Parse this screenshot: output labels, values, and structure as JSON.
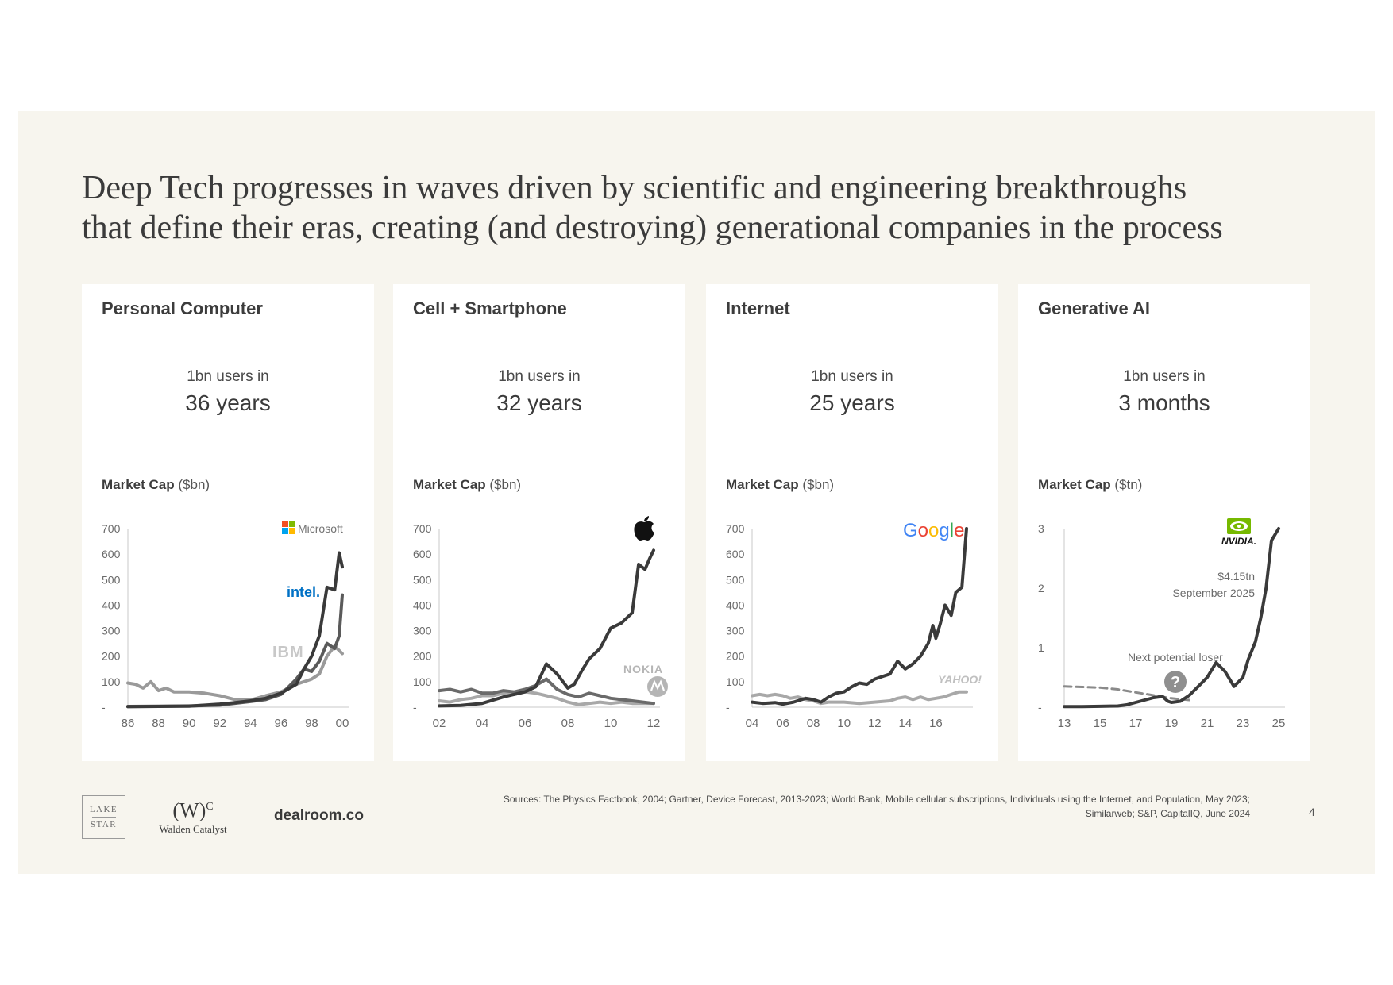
{
  "headline": {
    "line1": "Deep Tech progresses in waves driven by scientific and engineering breakthroughs",
    "line2": "that define their eras, creating (and destroying) generational companies in the process"
  },
  "cards": [
    {
      "title": "Personal Computer",
      "users_label": "1bn users in",
      "users_value": "36 years",
      "mcap_bold": "Market Cap",
      "mcap_unit": "($bn)"
    },
    {
      "title": "Cell + Smartphone",
      "users_label": "1bn users in",
      "users_value": "32 years",
      "mcap_bold": "Market Cap",
      "mcap_unit": "($bn)"
    },
    {
      "title": "Internet",
      "users_label": "1bn users in",
      "users_value": "25 years",
      "mcap_bold": "Market Cap",
      "mcap_unit": "($bn)"
    },
    {
      "title": "Generative AI",
      "users_label": "1bn users in",
      "users_value": "3 months",
      "mcap_bold": "Market Cap",
      "mcap_unit": "($tn)"
    }
  ],
  "chart_data": [
    {
      "type": "line",
      "title": "Personal Computer",
      "ylabel": "Market Cap ($bn)",
      "ylim": [
        0,
        700
      ],
      "yticks": [
        "-",
        "100",
        "200",
        "300",
        "400",
        "500",
        "600",
        "700"
      ],
      "xlim": [
        1986,
        2000
      ],
      "xticks": [
        "86",
        "88",
        "90",
        "92",
        "94",
        "96",
        "98",
        "00"
      ],
      "series": [
        {
          "name": "Microsoft",
          "color": "#3a3a3a",
          "x": [
            1986,
            1988,
            1990,
            1992,
            1993,
            1994,
            1995,
            1996,
            1997,
            1997.5,
            1998,
            1998.5,
            1999,
            1999.5,
            1999.8,
            2000
          ],
          "y": [
            2,
            3,
            4,
            12,
            18,
            25,
            35,
            55,
            90,
            150,
            200,
            280,
            470,
            460,
            605,
            550
          ]
        },
        {
          "name": "Intel",
          "color": "#5a5a5a",
          "x": [
            1986,
            1988,
            1990,
            1992,
            1993,
            1994,
            1995,
            1996,
            1997,
            1997.5,
            1998,
            1998.5,
            1999,
            1999.5,
            1999.8,
            2000
          ],
          "y": [
            3,
            4,
            5,
            8,
            15,
            22,
            30,
            50,
            110,
            150,
            140,
            180,
            250,
            230,
            280,
            440
          ]
        },
        {
          "name": "IBM",
          "color": "#9a9a9a",
          "x": [
            1986,
            1986.5,
            1987,
            1987.5,
            1988,
            1988.5,
            1989,
            1990,
            1991,
            1992,
            1993,
            1994,
            1995,
            1996,
            1997,
            1998,
            1998.5,
            1999,
            1999.5,
            2000
          ],
          "y": [
            95,
            90,
            75,
            100,
            65,
            75,
            60,
            60,
            55,
            45,
            30,
            28,
            45,
            60,
            90,
            110,
            130,
            200,
            240,
            210
          ]
        }
      ]
    },
    {
      "type": "line",
      "title": "Cell + Smartphone",
      "ylabel": "Market Cap ($bn)",
      "ylim": [
        0,
        700
      ],
      "yticks": [
        "-",
        "100",
        "200",
        "300",
        "400",
        "500",
        "600",
        "700"
      ],
      "xlim": [
        2002,
        2012
      ],
      "xticks": [
        "02",
        "04",
        "06",
        "08",
        "10",
        "12"
      ],
      "series": [
        {
          "name": "Apple",
          "color": "#3a3a3a",
          "x": [
            2002,
            2003,
            2004,
            2005,
            2006,
            2006.5,
            2007,
            2007.5,
            2008,
            2008.3,
            2008.7,
            2009,
            2009.5,
            2010,
            2010.5,
            2011,
            2011.3,
            2011.6,
            2011.8,
            2012
          ],
          "y": [
            5,
            7,
            15,
            40,
            60,
            80,
            170,
            130,
            75,
            90,
            150,
            190,
            230,
            310,
            330,
            370,
            560,
            540,
            580,
            615
          ]
        },
        {
          "name": "Nokia",
          "color": "#6a6a6a",
          "x": [
            2002,
            2002.5,
            2003,
            2003.5,
            2004,
            2004.5,
            2005,
            2005.5,
            2006,
            2006.5,
            2007,
            2007.5,
            2008,
            2008.5,
            2009,
            2009.5,
            2010,
            2010.5,
            2011,
            2011.5,
            2012
          ],
          "y": [
            65,
            70,
            60,
            70,
            55,
            55,
            65,
            60,
            70,
            85,
            110,
            70,
            50,
            40,
            55,
            45,
            35,
            30,
            25,
            20,
            15
          ]
        },
        {
          "name": "Motorola",
          "color": "#a8a8a8",
          "x": [
            2002,
            2002.5,
            2003,
            2003.5,
            2004,
            2004.5,
            2005,
            2005.5,
            2006,
            2006.5,
            2007,
            2007.5,
            2008,
            2008.5,
            2009,
            2009.5,
            2010,
            2010.5,
            2011,
            2011.5,
            2012
          ],
          "y": [
            25,
            20,
            30,
            35,
            45,
            45,
            55,
            50,
            60,
            55,
            45,
            35,
            20,
            10,
            15,
            20,
            15,
            20,
            15,
            15,
            15
          ]
        }
      ]
    },
    {
      "type": "line",
      "title": "Internet",
      "ylabel": "Market Cap ($bn)",
      "ylim": [
        0,
        700
      ],
      "yticks": [
        "-",
        "100",
        "200",
        "300",
        "400",
        "500",
        "600",
        "700"
      ],
      "xlim": [
        2004,
        2018
      ],
      "xticks": [
        "04",
        "06",
        "08",
        "10",
        "12",
        "14",
        "16"
      ],
      "series": [
        {
          "name": "Google",
          "color": "#3a3a3a",
          "x": [
            2004,
            2004.7,
            2005.5,
            2006,
            2006.7,
            2007.5,
            2008,
            2008.5,
            2009,
            2009.5,
            2010,
            2010.5,
            2011,
            2011.5,
            2012,
            2012.5,
            2013,
            2013.5,
            2014,
            2014.5,
            2015,
            2015.5,
            2015.8,
            2016,
            2016.3,
            2016.6,
            2017,
            2017.3,
            2017.7,
            2018
          ],
          "y": [
            20,
            15,
            18,
            12,
            20,
            35,
            30,
            20,
            40,
            55,
            60,
            80,
            95,
            90,
            110,
            120,
            130,
            180,
            150,
            170,
            200,
            250,
            320,
            270,
            330,
            400,
            360,
            450,
            470,
            700
          ]
        },
        {
          "name": "Yahoo!",
          "color": "#a8a8a8",
          "x": [
            2004,
            2004.5,
            2005,
            2005.5,
            2006,
            2006.5,
            2007,
            2007.5,
            2008,
            2008.5,
            2009,
            2010,
            2011,
            2012,
            2013,
            2013.5,
            2014,
            2014.5,
            2015,
            2015.5,
            2016,
            2016.5,
            2017,
            2017.5,
            2018
          ],
          "y": [
            45,
            50,
            45,
            50,
            45,
            35,
            40,
            30,
            25,
            15,
            20,
            20,
            15,
            20,
            25,
            35,
            40,
            30,
            40,
            30,
            35,
            40,
            50,
            60,
            60
          ]
        }
      ]
    },
    {
      "type": "line",
      "title": "Generative AI",
      "ylabel": "Market Cap ($tn)",
      "ylim": [
        0,
        3
      ],
      "yticks": [
        "-",
        "1",
        "2",
        "3"
      ],
      "xlim": [
        2013,
        2025
      ],
      "xticks": [
        "13",
        "15",
        "17",
        "19",
        "21",
        "23",
        "25"
      ],
      "series": [
        {
          "name": "NVIDIA",
          "color": "#3a3a3a",
          "x": [
            2013,
            2014,
            2015,
            2016,
            2016.5,
            2017,
            2017.5,
            2018,
            2018.5,
            2018.8,
            2019,
            2019.5,
            2020,
            2020.5,
            2021,
            2021.5,
            2022,
            2022.5,
            2023,
            2023.3,
            2023.7,
            2024,
            2024.3,
            2024.6,
            2025
          ],
          "y": [
            0.01,
            0.01,
            0.015,
            0.02,
            0.04,
            0.08,
            0.12,
            0.16,
            0.18,
            0.1,
            0.08,
            0.1,
            0.2,
            0.35,
            0.5,
            0.75,
            0.6,
            0.35,
            0.5,
            0.8,
            1.1,
            1.5,
            2.0,
            2.8,
            4.15
          ]
        },
        {
          "name": "Next potential loser",
          "color": "#8a8a8a",
          "dashed": true,
          "x": [
            2013,
            2014,
            2015,
            2016,
            2017,
            2018,
            2019,
            2020
          ],
          "y": [
            0.35,
            0.34,
            0.33,
            0.3,
            0.25,
            0.2,
            0.15,
            0.12
          ]
        }
      ],
      "annotations": {
        "value": "$4.15tn",
        "date": "September 2025",
        "loser_label": "Next potential loser"
      }
    }
  ],
  "logos": {
    "card1": {
      "microsoft": "Microsoft",
      "intel": "intel.",
      "ibm": "IBM"
    },
    "card2": {
      "nokia": "NOKIA"
    },
    "card3": {
      "google": "Google",
      "yahoo": "YAHOO!"
    },
    "card4": {
      "nvidia": "NVIDIA."
    }
  },
  "footer": {
    "lakestar_line1": "LAKE",
    "lakestar_line2": "STAR",
    "walden_mark": "(W)",
    "walden_sup": "C",
    "walden_name": "Walden Catalyst",
    "dealroom": "dealroom.co",
    "sources_line1": "Sources: The Physics Factbook, 2004;  Gartner, Device Forecast, 2013-2023; World Bank, Mobile cellular subscriptions, Individuals using the Internet, and Population, May 2023;",
    "sources_line2": "Similarweb; S&P, CapitalIQ, June 2024",
    "page_number": "4"
  },
  "icons": [
    "apple-icon",
    "motorola-icon",
    "question-icon",
    "nvidia-eye-icon",
    "microsoft-icon"
  ]
}
